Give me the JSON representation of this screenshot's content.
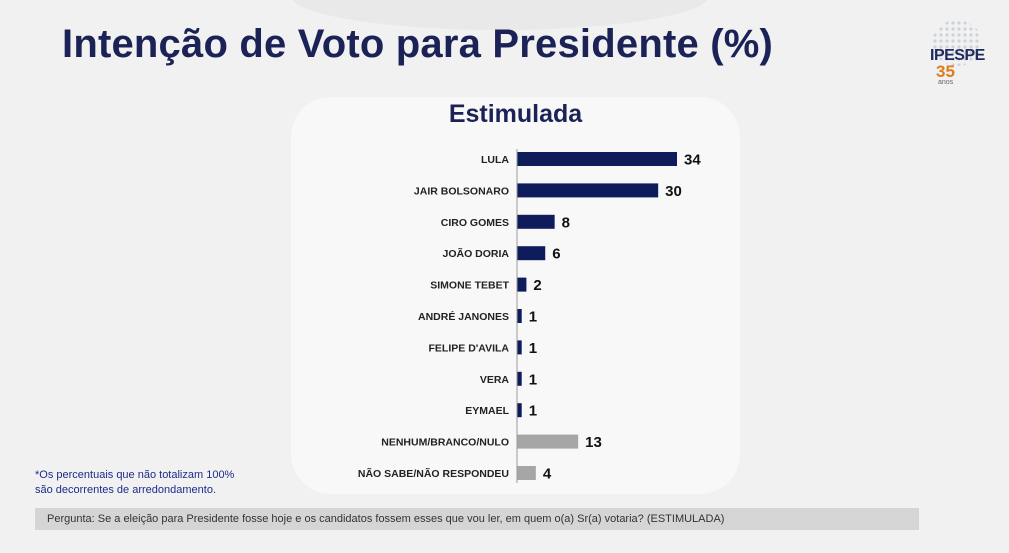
{
  "header": {
    "title": "Intenção de Voto para Presidente (%)"
  },
  "logo": {
    "name": "IPESPE",
    "years": "35",
    "years_suffix": "anos"
  },
  "chart_data": {
    "type": "bar",
    "orientation": "horizontal",
    "title": "Estimulada",
    "categories": [
      "LULA",
      "JAIR BOLSONARO",
      "CIRO GOMES",
      "JOÃO DORIA",
      "SIMONE TEBET",
      "ANDRÉ JANONES",
      "FELIPE D'AVILA",
      "VERA",
      "EYMAEL",
      "NENHUM/BRANCO/NULO",
      "NÃO SABE/NÃO RESPONDEU"
    ],
    "values": [
      34,
      30,
      8,
      6,
      2,
      1,
      1,
      1,
      1,
      13,
      4
    ],
    "value_labels": [
      "34",
      "30",
      "8",
      "6",
      "2",
      "1",
      "1",
      "1",
      "1",
      "13",
      "4"
    ],
    "colors": [
      "#0e1c5b",
      "#0e1c5b",
      "#0e1c5b",
      "#0e1c5b",
      "#0e1c5b",
      "#0e1c5b",
      "#0e1c5b",
      "#0e1c5b",
      "#0e1c5b",
      "#a6a6a6",
      "#a6a6a6"
    ],
    "xlim": [
      0,
      34
    ],
    "grid": false,
    "legend": "none"
  },
  "footnote": {
    "line1": "*Os percentuais que não totalizam 100%",
    "line2": "são decorrentes de arredondamento."
  },
  "question": {
    "text": "Pergunta:  Se a eleição para Presidente fosse hoje e os candidatos fossem esses que vou ler, em quem o(a) Sr(a) votaria? (ESTIMULADA)"
  }
}
